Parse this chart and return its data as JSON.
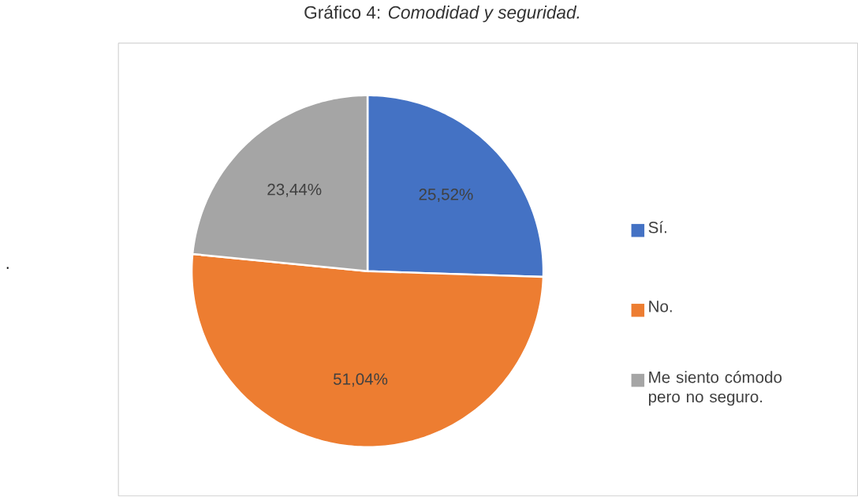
{
  "chart_data": {
    "type": "pie",
    "title": "Gráfico 4: *Comodidad y seguridad.*",
    "categories": [
      "Sí.",
      "No.",
      "Me siento cómodo pero no seguro."
    ],
    "values": [
      25.52,
      51.04,
      23.44
    ],
    "colors": [
      "#4472c4",
      "#ed7d31",
      "#a5a5a5"
    ],
    "value_labels": [
      "25,52%",
      "51,04%",
      "23,44%"
    ],
    "legend": "right",
    "annotations": [
      "."
    ]
  }
}
